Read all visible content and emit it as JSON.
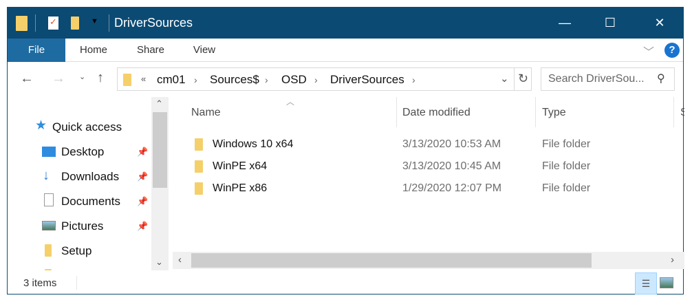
{
  "window": {
    "title": "DriverSources",
    "minimize": "—",
    "maximize": "☐",
    "close": "✕"
  },
  "ribbon": {
    "tabs": [
      "File",
      "Home",
      "Share",
      "View"
    ],
    "help": "?",
    "expand": "﹀"
  },
  "address": {
    "overflow": "«",
    "crumbs": [
      "cm01",
      "Sources$",
      "OSD",
      "DriverSources"
    ],
    "search_placeholder": "Search DriverSou..."
  },
  "nav": {
    "items": [
      {
        "label": "Quick access",
        "icon": "star-icon"
      },
      {
        "label": "Desktop",
        "icon": "desktop-icon",
        "pinned": true
      },
      {
        "label": "Downloads",
        "icon": "download-icon",
        "pinned": true
      },
      {
        "label": "Documents",
        "icon": "document-icon",
        "pinned": true
      },
      {
        "label": "Pictures",
        "icon": "picture-icon",
        "pinned": true
      },
      {
        "label": "Setup",
        "icon": "folder-icon",
        "pinned": false
      }
    ]
  },
  "columns": [
    "Name",
    "Date modified",
    "Type",
    "S"
  ],
  "files": [
    {
      "name": "Windows 10 x64",
      "date": "3/13/2020 10:53 AM",
      "type": "File folder"
    },
    {
      "name": "WinPE x64",
      "date": "3/13/2020 10:45 AM",
      "type": "File folder"
    },
    {
      "name": "WinPE x86",
      "date": "1/29/2020 12:07 PM",
      "type": "File folder"
    }
  ],
  "status": {
    "count": "3 items"
  },
  "colors": {
    "titlebar": "#0b4a73",
    "file_tab": "#1e6ba1",
    "folder": "#f5cf6a"
  }
}
